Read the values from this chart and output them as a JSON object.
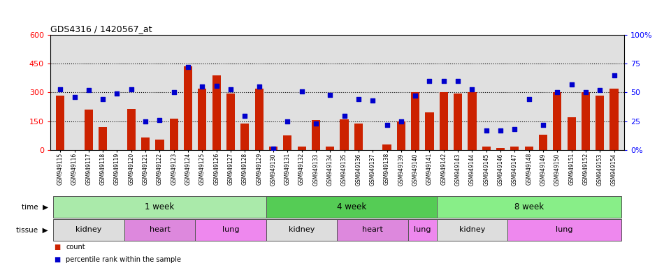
{
  "title": "GDS4316 / 1420567_at",
  "samples": [
    "GSM949115",
    "GSM949116",
    "GSM949117",
    "GSM949118",
    "GSM949119",
    "GSM949120",
    "GSM949121",
    "GSM949122",
    "GSM949123",
    "GSM949124",
    "GSM949125",
    "GSM949126",
    "GSM949127",
    "GSM949128",
    "GSM949129",
    "GSM949130",
    "GSM949131",
    "GSM949132",
    "GSM949133",
    "GSM949134",
    "GSM949135",
    "GSM949136",
    "GSM949137",
    "GSM949138",
    "GSM949139",
    "GSM949140",
    "GSM949141",
    "GSM949142",
    "GSM949143",
    "GSM949144",
    "GSM949145",
    "GSM949146",
    "GSM949147",
    "GSM949148",
    "GSM949149",
    "GSM949150",
    "GSM949151",
    "GSM949152",
    "GSM949153",
    "GSM949154"
  ],
  "counts": [
    285,
    0,
    210,
    120,
    0,
    215,
    65,
    55,
    165,
    435,
    320,
    390,
    295,
    140,
    320,
    20,
    75,
    20,
    155,
    20,
    160,
    140,
    0,
    30,
    150,
    300,
    195,
    300,
    295,
    300,
    20,
    10,
    20,
    20,
    80,
    300,
    170,
    300,
    285,
    320
  ],
  "percentiles": [
    53,
    46,
    52,
    44,
    49,
    53,
    25,
    26,
    50,
    72,
    55,
    56,
    53,
    30,
    55,
    1,
    25,
    51,
    23,
    48,
    30,
    44,
    43,
    22,
    25,
    47,
    60,
    60,
    60,
    53,
    17,
    17,
    18,
    44,
    22,
    50,
    57,
    50,
    52,
    65
  ],
  "ylim_left": [
    0,
    600
  ],
  "ylim_right": [
    0,
    100
  ],
  "yticks_left": [
    0,
    150,
    300,
    450,
    600
  ],
  "yticks_right": [
    0,
    25,
    50,
    75,
    100
  ],
  "ytick_labels_right": [
    "0%",
    "25",
    "50",
    "75",
    "100%"
  ],
  "hlines": [
    150,
    300,
    450
  ],
  "bar_color": "#cc2200",
  "dot_color": "#0000cc",
  "bg_color": "#e0e0e0",
  "time_groups": [
    {
      "label": "1 week",
      "start": 0,
      "end": 15,
      "color": "#aaeaaa"
    },
    {
      "label": "4 week",
      "start": 15,
      "end": 27,
      "color": "#55cc55"
    },
    {
      "label": "8 week",
      "start": 27,
      "end": 40,
      "color": "#88ee88"
    }
  ],
  "tissue_groups": [
    {
      "label": "kidney",
      "start": 0,
      "end": 5,
      "color": "#dddddd"
    },
    {
      "label": "heart",
      "start": 5,
      "end": 10,
      "color": "#dd88dd"
    },
    {
      "label": "lung",
      "start": 10,
      "end": 15,
      "color": "#ee88ee"
    },
    {
      "label": "kidney",
      "start": 15,
      "end": 20,
      "color": "#dddddd"
    },
    {
      "label": "heart",
      "start": 20,
      "end": 25,
      "color": "#dd88dd"
    },
    {
      "label": "lung",
      "start": 25,
      "end": 27,
      "color": "#ee88ee"
    },
    {
      "label": "kidney",
      "start": 27,
      "end": 32,
      "color": "#dddddd"
    },
    {
      "label": "lung",
      "start": 32,
      "end": 40,
      "color": "#ee88ee"
    }
  ],
  "legend_count_label": "count",
  "legend_pct_label": "percentile rank within the sample"
}
